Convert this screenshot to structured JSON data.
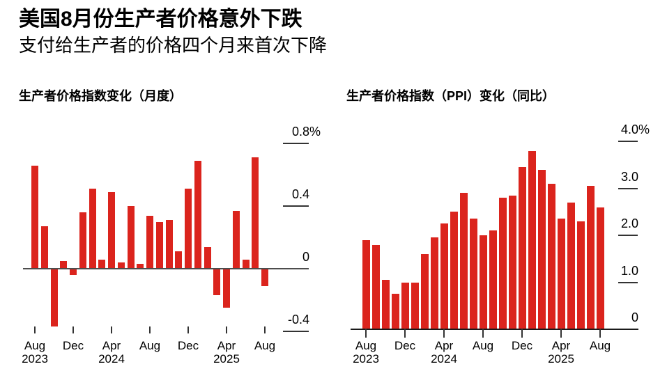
{
  "page": {
    "title": "美国8月份生产者价格意外下跌",
    "subtitle": "支付给生产者的价格四个月来首次下降"
  },
  "colors": {
    "bar": "#db241d",
    "tick": "#333333",
    "zero_line_left": "#4d4d4d",
    "baseline_right": "#1a1a1a",
    "text": "#000000",
    "background": "#ffffff"
  },
  "chart_data": [
    {
      "id": "ppi-mom",
      "type": "bar",
      "title": "生产者价格指数变化（月度）",
      "unit": "%",
      "x": [
        "Aug 2023",
        "Sep 2023",
        "Oct 2023",
        "Nov 2023",
        "Dec 2023",
        "Jan 2024",
        "Feb 2024",
        "Mar 2024",
        "Apr 2024",
        "May 2024",
        "Jun 2024",
        "Jul 2024",
        "Aug 2024",
        "Sep 2024",
        "Oct 2024",
        "Nov 2024",
        "Dec 2024",
        "Jan 2025",
        "Feb 2025",
        "Mar 2025",
        "Apr 2025",
        "May 2025",
        "Jun 2025",
        "Jul 2025",
        "Aug 2025"
      ],
      "values": [
        0.66,
        0.27,
        -0.37,
        0.05,
        -0.04,
        0.36,
        0.51,
        0.06,
        0.49,
        0.04,
        0.4,
        0.03,
        0.34,
        0.3,
        0.31,
        0.11,
        0.51,
        0.69,
        0.14,
        -0.17,
        -0.25,
        0.37,
        0.06,
        0.71,
        -0.11
      ],
      "ylim": [
        -0.45,
        0.85
      ],
      "grid": false,
      "legend": null,
      "yticks": [
        {
          "value": 0.8,
          "label": "0.8",
          "unit": "%"
        },
        {
          "value": 0.4,
          "label": "0.4"
        },
        {
          "value": 0,
          "label": "0"
        },
        {
          "value": -0.4,
          "label": "-0.4"
        }
      ],
      "xticks": [
        {
          "index": 0,
          "line1": "Aug",
          "line2": "2023"
        },
        {
          "index": 4,
          "line1": "Dec"
        },
        {
          "index": 8,
          "line1": "Apr",
          "line2": "2024"
        },
        {
          "index": 12,
          "line1": "Aug"
        },
        {
          "index": 16,
          "line1": "Dec"
        },
        {
          "index": 20,
          "line1": "Apr",
          "line2": "2025"
        },
        {
          "index": 24,
          "line1": "Aug"
        }
      ]
    },
    {
      "id": "ppi-yoy",
      "type": "bar",
      "title": "生产者价格指数（PPI）变化（同比）",
      "unit": "%",
      "x": [
        "Aug 2023",
        "Sep 2023",
        "Oct 2023",
        "Nov 2023",
        "Dec 2023",
        "Jan 2024",
        "Feb 2024",
        "Mar 2024",
        "Apr 2024",
        "May 2024",
        "Jun 2024",
        "Jul 2024",
        "Aug 2024",
        "Sep 2024",
        "Oct 2024",
        "Nov 2024",
        "Dec 2024",
        "Jan 2025",
        "Feb 2025",
        "Mar 2025",
        "Apr 2025",
        "May 2025",
        "Jun 2025",
        "Jul 2025",
        "Aug 2025"
      ],
      "values": [
        1.9,
        1.8,
        1.05,
        0.75,
        1.0,
        1.0,
        1.6,
        1.95,
        2.25,
        2.5,
        2.9,
        2.35,
        2.0,
        2.1,
        2.8,
        2.85,
        3.45,
        3.8,
        3.4,
        3.1,
        2.35,
        2.7,
        2.3,
        3.05,
        2.6
      ],
      "ylim": [
        0,
        4.3
      ],
      "grid": false,
      "legend": null,
      "yticks": [
        {
          "value": 4.0,
          "label": "4.0",
          "unit": "%"
        },
        {
          "value": 3.0,
          "label": "3.0"
        },
        {
          "value": 2.0,
          "label": "2.0"
        },
        {
          "value": 1.0,
          "label": "1.0"
        },
        {
          "value": 0,
          "label": "0"
        }
      ],
      "xticks": [
        {
          "index": 0,
          "line1": "Aug",
          "line2": "2023"
        },
        {
          "index": 4,
          "line1": "Dec"
        },
        {
          "index": 8,
          "line1": "Apr",
          "line2": "2024"
        },
        {
          "index": 12,
          "line1": "Aug"
        },
        {
          "index": 16,
          "line1": "Dec"
        },
        {
          "index": 20,
          "line1": "Apr",
          "line2": "2025"
        },
        {
          "index": 24,
          "line1": "Aug"
        }
      ]
    }
  ]
}
